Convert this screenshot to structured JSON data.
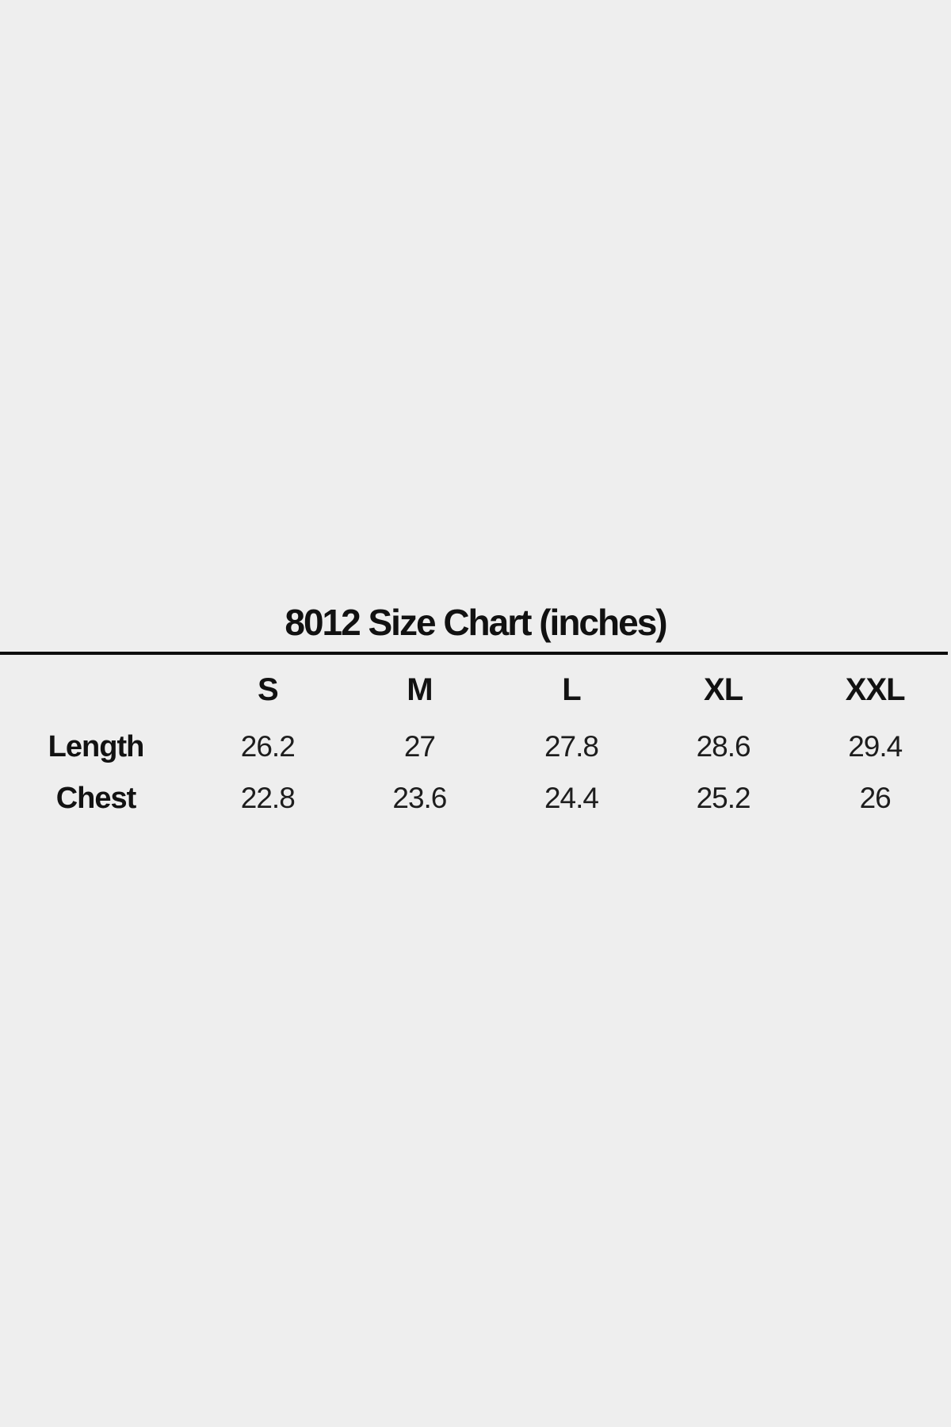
{
  "page": {
    "background_color": "#eeeeee",
    "text_color": "#161616",
    "rule_color": "#0d0d0d"
  },
  "chart_data": {
    "type": "table",
    "title": "8012 Size Chart (inches)",
    "units": "inches",
    "columns": [
      "S",
      "M",
      "L",
      "XL",
      "XXL"
    ],
    "rows": [
      {
        "label": "Length",
        "values": [
          26.2,
          27,
          27.8,
          28.6,
          29.4
        ]
      },
      {
        "label": "Chest",
        "values": [
          22.8,
          23.6,
          24.4,
          25.2,
          26
        ]
      }
    ],
    "layout_hints": {
      "title_position": "top-center",
      "title_underline": true,
      "header_row_bold": true,
      "row_labels_bold": true,
      "gridlines": false
    }
  }
}
